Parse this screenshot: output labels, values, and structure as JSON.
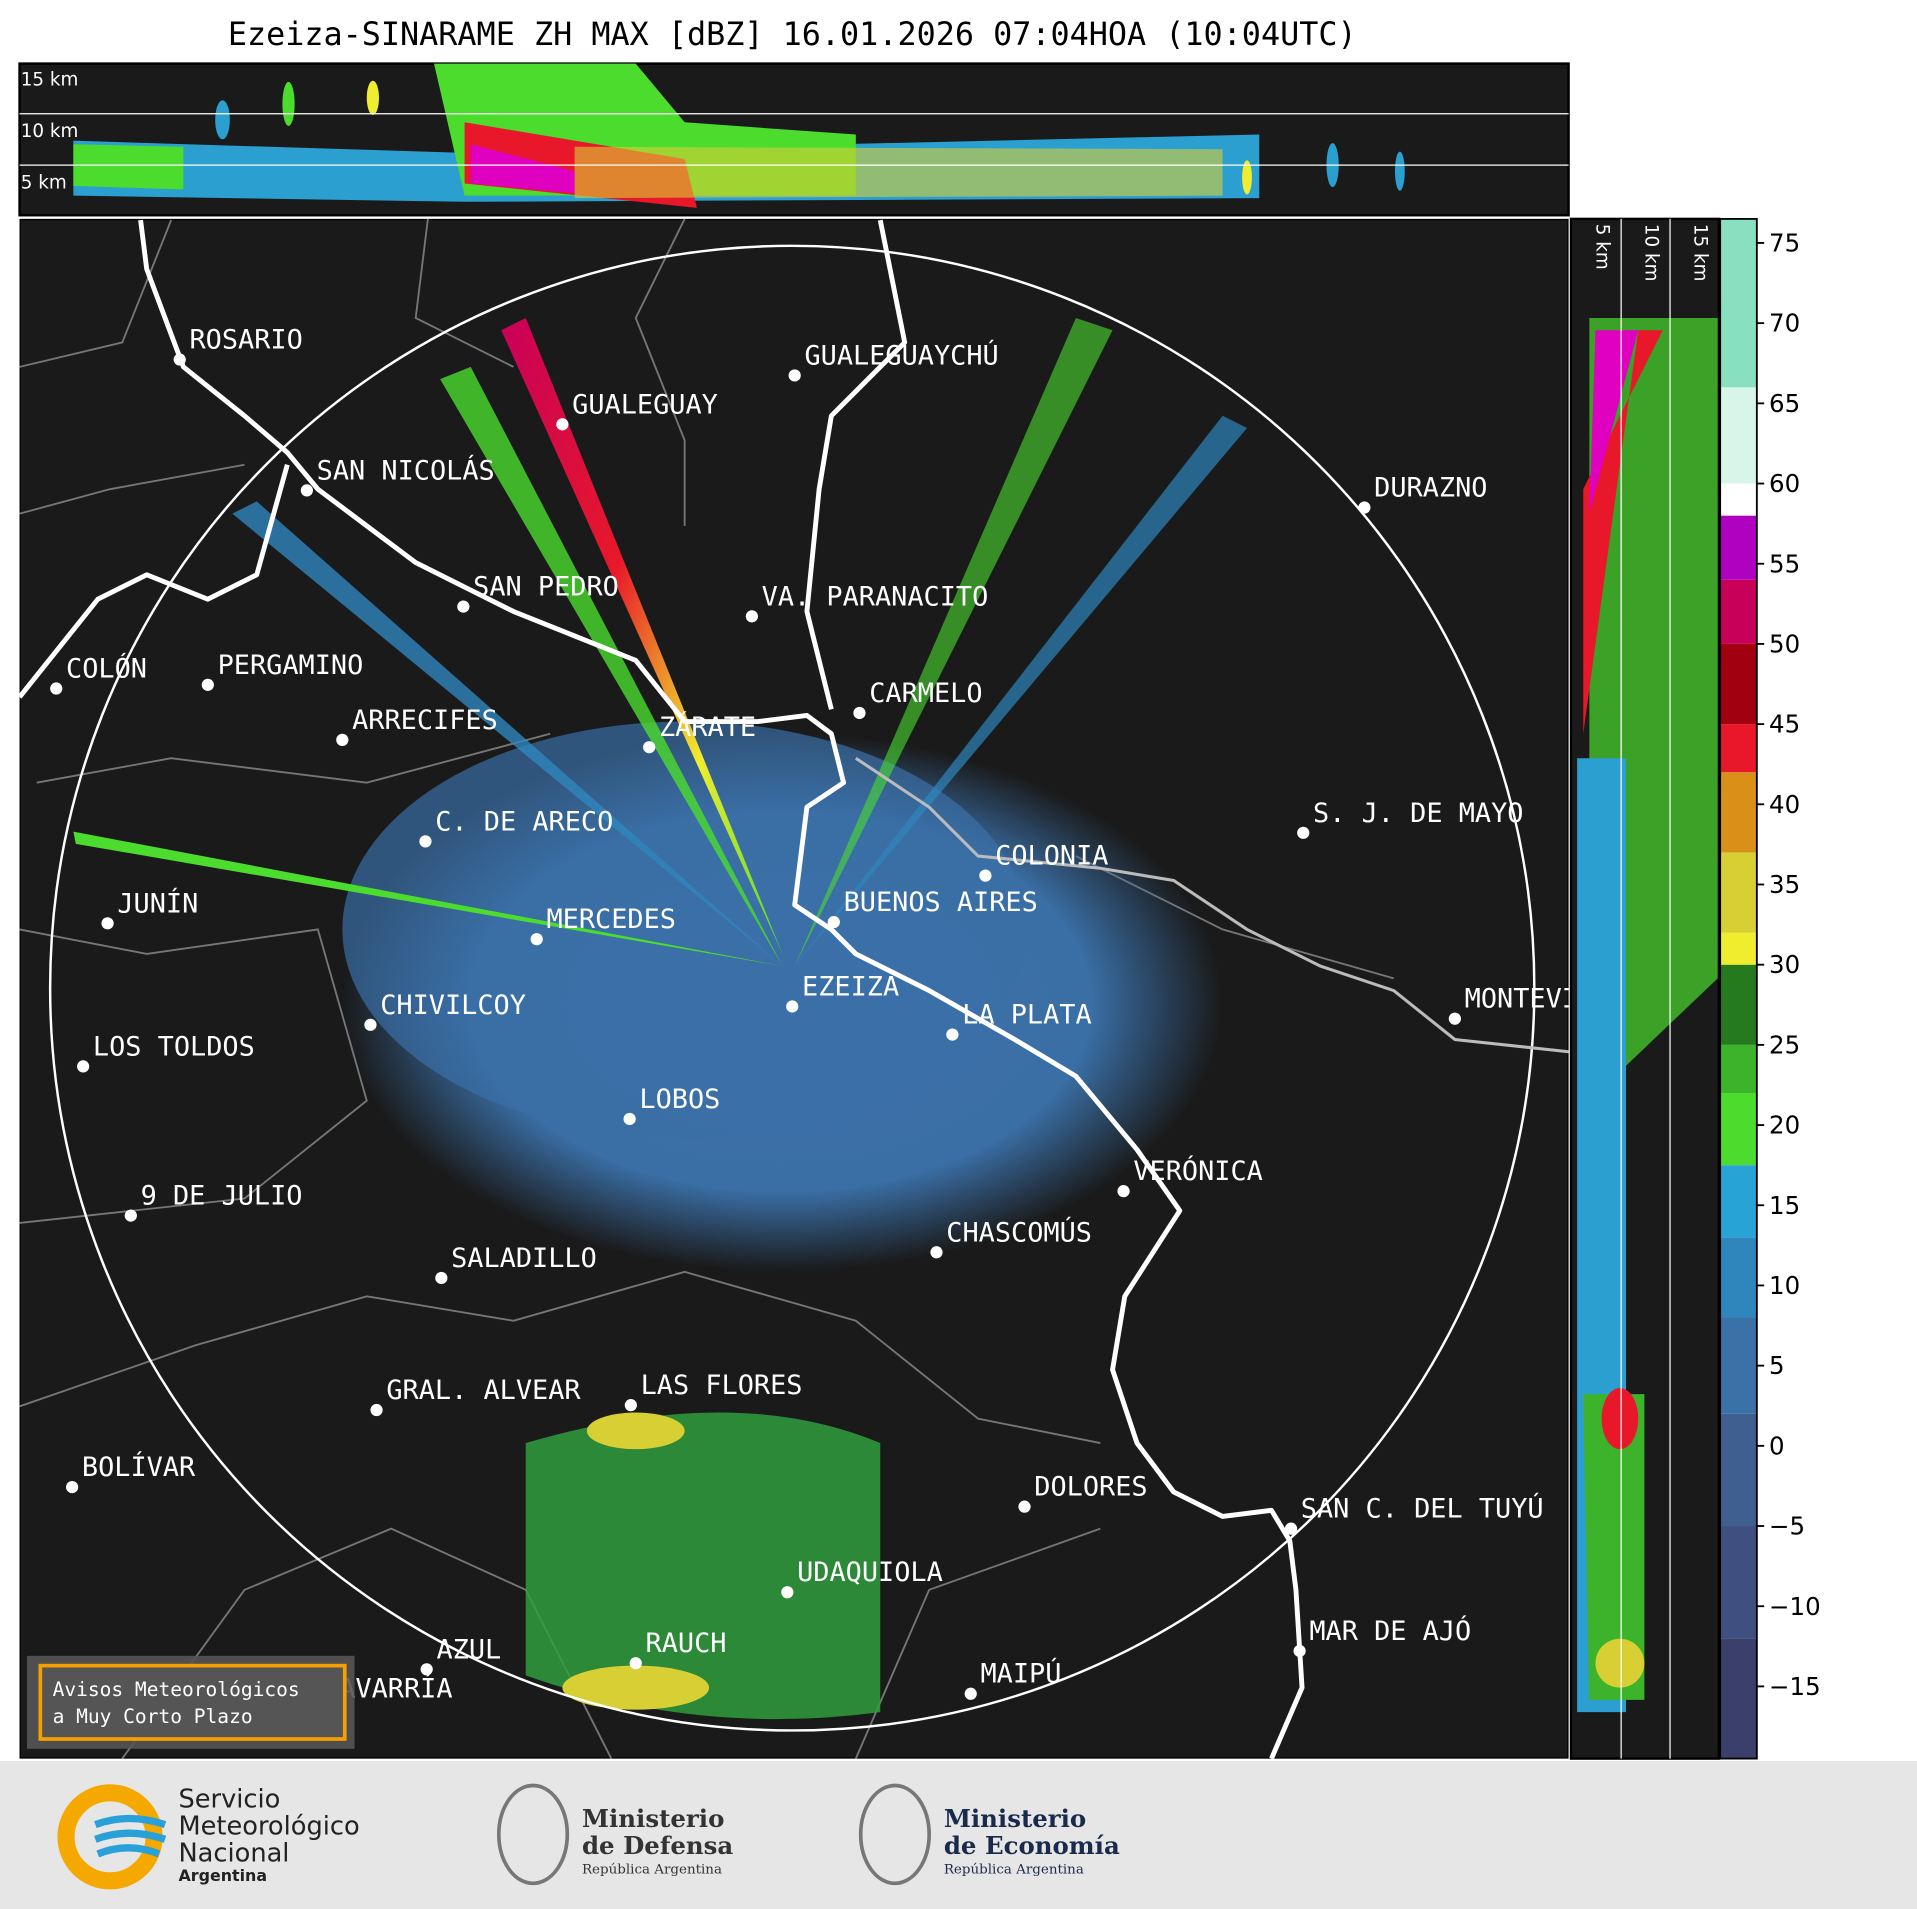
{
  "header": {
    "title": "Ezeiza-SINARAME ZH MAX [dBZ] 16.01.2026 07:04HOA (10:04UTC)"
  },
  "profile_top": {
    "height_labels": [
      "15 km",
      "10 km",
      "5 km"
    ]
  },
  "profile_right": {
    "height_labels": [
      "5 km",
      "10 km",
      "15 km"
    ]
  },
  "map": {
    "places": [
      "ROSARIO",
      "GUALEGUAYCHÚ",
      "GUALEGUAY",
      "SAN NICOLÁS",
      "DURAZNO",
      "SAN PEDRO",
      "VA. PARANACITO",
      "COLÓN",
      "PERGAMINO",
      "CARMELO",
      "ARRECIFES",
      "ZÁRATE",
      "C. DE ARECO",
      "S. J. DE MAYO",
      "COLONIA",
      "JUNÍN",
      "BUENOS AIRES",
      "MERCEDES",
      "EZEIZA",
      "MONTEVIDEO",
      "CHIVILCOY",
      "LA PLATA",
      "LOS TOLDOS",
      "LOBOS",
      "VERÓNICA",
      "9 DE JULIO",
      "CHASCOMÚS",
      "SALADILLO",
      "GRAL. ALVEAR",
      "LAS FLORES",
      "BOLÍVAR",
      "DOLORES",
      "SAN C. DEL TUYÚ",
      "UDAQUIOLA",
      "MAR DE AJÓ",
      "RAUCH",
      "AZUL",
      "OLAVARRÍA",
      "MAIPÚ"
    ]
  },
  "colorbar": {
    "lim": [
      -19.5,
      76.5
    ],
    "ticks": [
      75,
      70,
      65,
      60,
      55,
      50,
      45,
      40,
      35,
      30,
      25,
      20,
      15,
      10,
      5,
      0,
      {
        "value": -5,
        "label": "−5"
      },
      {
        "value": -10,
        "label": "−10"
      },
      {
        "value": -15,
        "label": "−15"
      }
    ],
    "bands": [
      {
        "from": -19.5,
        "to": -12,
        "color": "#3a3f6b"
      },
      {
        "from": -12,
        "to": -5,
        "color": "#3f4f80"
      },
      {
        "from": -5,
        "to": 2,
        "color": "#3e5f90"
      },
      {
        "from": 2,
        "to": 8,
        "color": "#3a72a8"
      },
      {
        "from": 8,
        "to": 13,
        "color": "#2f86bd"
      },
      {
        "from": 13,
        "to": 17.5,
        "color": "#28a3d6"
      },
      {
        "from": 17.5,
        "to": 22,
        "color": "#4bdc2e"
      },
      {
        "from": 22,
        "to": 25,
        "color": "#3cb32a"
      },
      {
        "from": 25,
        "to": 30,
        "color": "#267a1e"
      },
      {
        "from": 30,
        "to": 32,
        "color": "#f0ec2e"
      },
      {
        "from": 32,
        "to": 37,
        "color": "#d8cf35"
      },
      {
        "from": 37,
        "to": 42,
        "color": "#d89018"
      },
      {
        "from": 42,
        "to": 45,
        "color": "#e8182a"
      },
      {
        "from": 45,
        "to": 50,
        "color": "#a00010"
      },
      {
        "from": 50,
        "to": 54,
        "color": "#c8005a"
      },
      {
        "from": 54,
        "to": 58,
        "color": "#b000c0"
      },
      {
        "from": 58,
        "to": 60,
        "color": "#ffffff"
      },
      {
        "from": 60,
        "to": 66,
        "color": "#d8f5ea"
      },
      {
        "from": 66,
        "to": 76.5,
        "color": "#88e0c0"
      }
    ]
  },
  "warning": {
    "lines": [
      "Avisos Meteorológicos",
      "a Muy Corto Plazo"
    ]
  },
  "footer": {
    "logos": [
      {
        "lines": [
          "Servicio",
          "Meteorológico",
          "Nacional",
          "Argentina"
        ]
      },
      {
        "lines": [
          "Ministerio",
          "de Defensa",
          "República Argentina"
        ]
      },
      {
        "lines": [
          "Ministerio",
          "de Economía",
          "República Argentina"
        ]
      }
    ]
  }
}
